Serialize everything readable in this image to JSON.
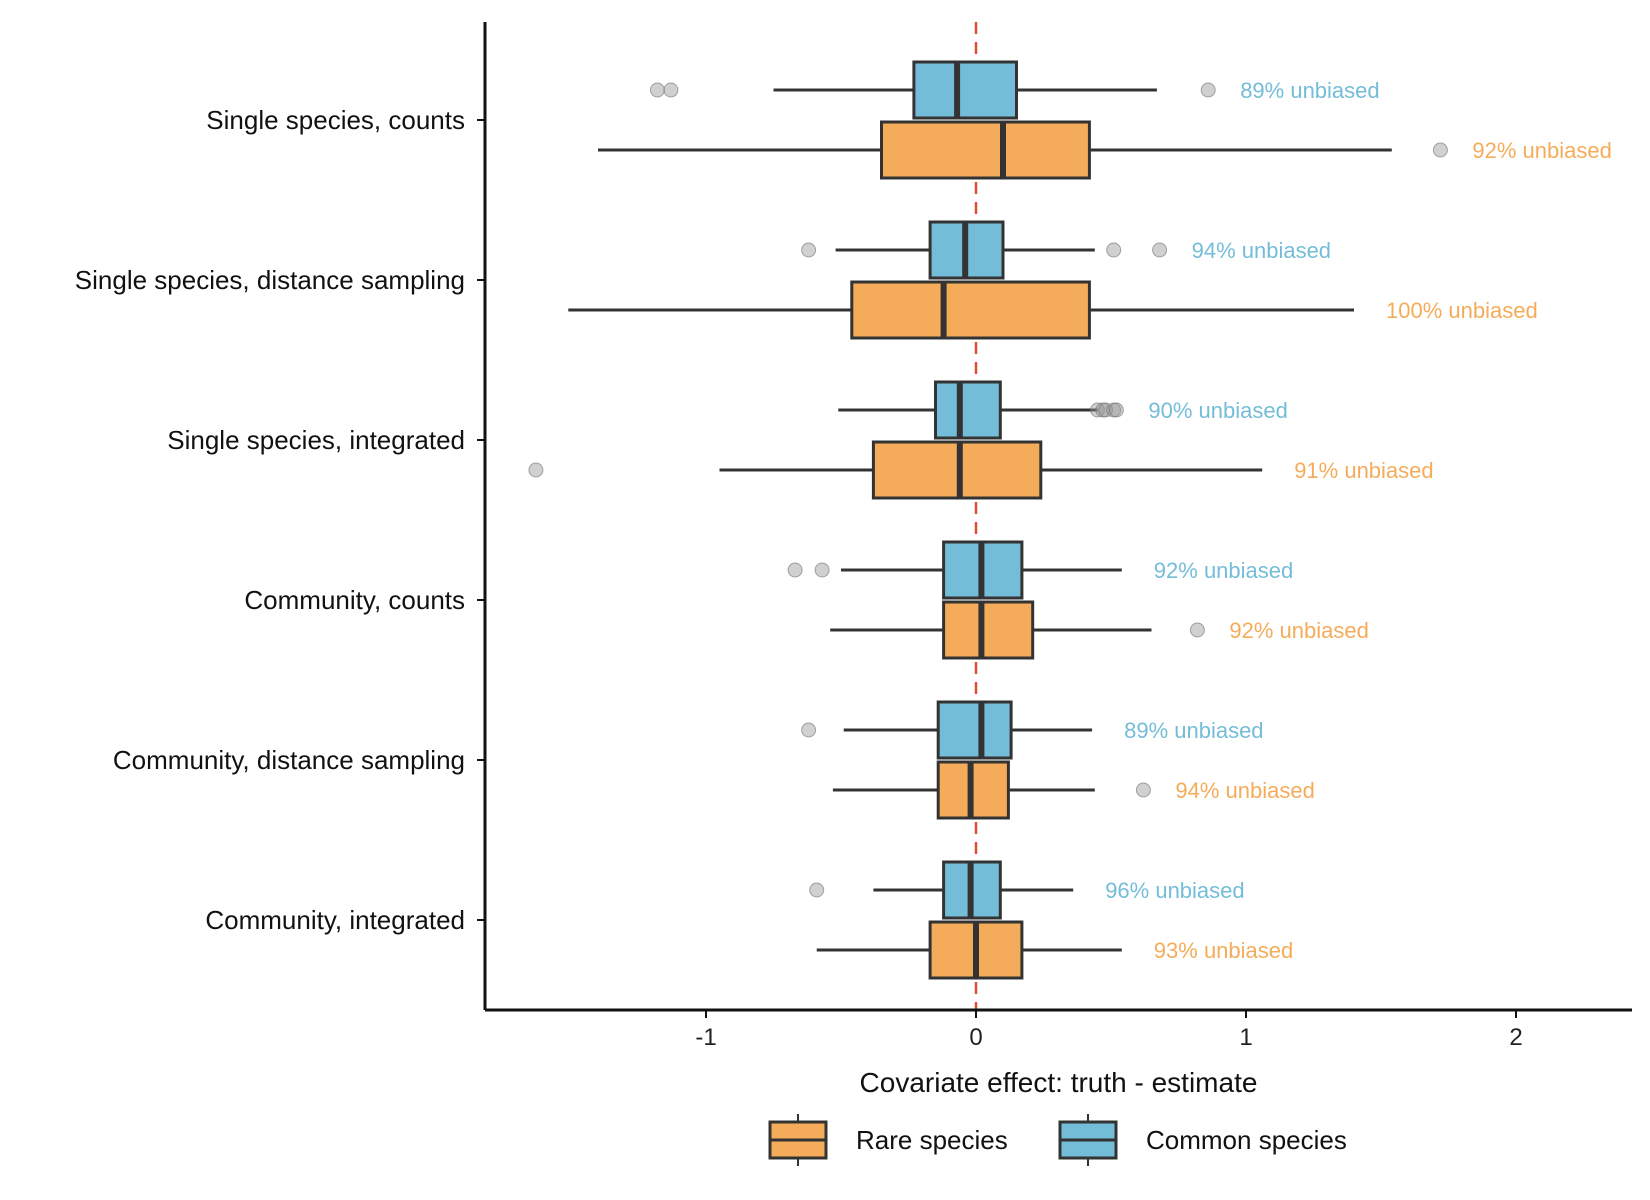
{
  "chart_data": {
    "type": "boxplot",
    "orientation": "horizontal",
    "xlabel": "Covariate effect: truth - estimate",
    "x_ticks": [
      -1,
      0,
      1,
      2
    ],
    "x_tick_labels": [
      "-1",
      "0",
      "1",
      "2"
    ],
    "xlim": [
      -1.82,
      2.44
    ],
    "reference_line": {
      "x": 0,
      "style": "dashed",
      "color": "#E34A33"
    },
    "grid": false,
    "legend_position": "bottom",
    "categories": [
      "Single species, counts",
      "Single species, distance sampling",
      "Single species, integrated",
      "Community, counts",
      "Community, distance sampling",
      "Community, integrated"
    ],
    "series": [
      {
        "name": "Common species",
        "color": "#74BDD8",
        "boxes": [
          {
            "category": "Single species, counts",
            "whisker_low": -0.75,
            "q1": -0.23,
            "median": -0.07,
            "q3": 0.15,
            "whisker_high": 0.67,
            "outliers": [
              -1.18,
              -1.13,
              0.86
            ],
            "label": "89% unbiased"
          },
          {
            "category": "Single species, distance sampling",
            "whisker_low": -0.52,
            "q1": -0.17,
            "median": -0.04,
            "q3": 0.1,
            "whisker_high": 0.44,
            "outliers": [
              -0.62,
              0.51,
              0.68
            ],
            "label": "94% unbiased"
          },
          {
            "category": "Single species, integrated",
            "whisker_low": -0.51,
            "q1": -0.15,
            "median": -0.06,
            "q3": 0.09,
            "whisker_high": 0.45,
            "outliers": [
              0.45,
              0.47,
              0.48,
              0.51,
              0.52
            ],
            "label": "90% unbiased"
          },
          {
            "category": "Community, counts",
            "whisker_low": -0.5,
            "q1": -0.12,
            "median": 0.02,
            "q3": 0.17,
            "whisker_high": 0.54,
            "outliers": [
              -0.67,
              -0.57
            ],
            "label": "92% unbiased"
          },
          {
            "category": "Community, distance sampling",
            "whisker_low": -0.49,
            "q1": -0.14,
            "median": 0.02,
            "q3": 0.13,
            "whisker_high": 0.43,
            "outliers": [
              -0.62
            ],
            "label": "89% unbiased"
          },
          {
            "category": "Community, integrated",
            "whisker_low": -0.38,
            "q1": -0.12,
            "median": -0.02,
            "q3": 0.09,
            "whisker_high": 0.36,
            "outliers": [
              -0.59
            ],
            "label": "96% unbiased"
          }
        ]
      },
      {
        "name": "Rare species",
        "color": "#F5AC5A",
        "boxes": [
          {
            "category": "Single species, counts",
            "whisker_low": -1.4,
            "q1": -0.35,
            "median": 0.1,
            "q3": 0.42,
            "whisker_high": 1.54,
            "outliers": [
              1.72
            ],
            "label": "92% unbiased"
          },
          {
            "category": "Single species, distance sampling",
            "whisker_low": -1.51,
            "q1": -0.46,
            "median": -0.12,
            "q3": 0.42,
            "whisker_high": 1.4,
            "outliers": [],
            "label": "100% unbiased"
          },
          {
            "category": "Single species, integrated",
            "whisker_low": -0.95,
            "q1": -0.38,
            "median": -0.06,
            "q3": 0.24,
            "whisker_high": 1.06,
            "outliers": [
              -1.63
            ],
            "label": "91% unbiased"
          },
          {
            "category": "Community, counts",
            "whisker_low": -0.54,
            "q1": -0.12,
            "median": 0.02,
            "q3": 0.21,
            "whisker_high": 0.65,
            "outliers": [
              0.82
            ],
            "label": "92% unbiased"
          },
          {
            "category": "Community, distance sampling",
            "whisker_low": -0.53,
            "q1": -0.14,
            "median": -0.02,
            "q3": 0.12,
            "whisker_high": 0.44,
            "outliers": [
              0.62
            ],
            "label": "94% unbiased"
          },
          {
            "category": "Community, integrated",
            "whisker_low": -0.59,
            "q1": -0.17,
            "median": 0.0,
            "q3": 0.17,
            "whisker_high": 0.54,
            "outliers": [],
            "label": "93% unbiased"
          }
        ]
      }
    ],
    "legend": [
      {
        "name": "Rare species",
        "color": "#F5AC5A"
      },
      {
        "name": "Common species",
        "color": "#74BDD8"
      }
    ]
  }
}
